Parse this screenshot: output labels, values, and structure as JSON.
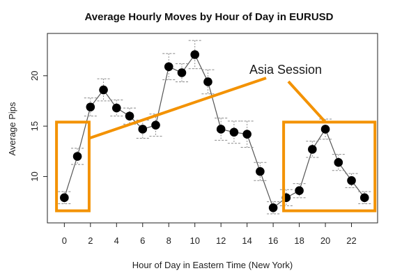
{
  "chart_data": {
    "type": "scatter",
    "title": "Average Hourly Moves by Hour of Day in EURUSD",
    "xlabel": "Hour of Day in Eastern Time (New York)",
    "ylabel": "Average Pips",
    "xlim": [
      -1.3,
      24.0
    ],
    "ylim": [
      5.4,
      24.2
    ],
    "x_ticks": [
      0,
      2,
      4,
      6,
      8,
      10,
      12,
      14,
      16,
      18,
      20,
      22
    ],
    "y_ticks": [
      10,
      15,
      20
    ],
    "grid": false,
    "series": [
      {
        "x": [
          0,
          1,
          2,
          3,
          4,
          5,
          6,
          7,
          8,
          9,
          10,
          11,
          12,
          13,
          14,
          15,
          16,
          17,
          18,
          19,
          20,
          21,
          22,
          23
        ],
        "y": [
          7.9,
          12.0,
          16.9,
          18.6,
          16.8,
          16.0,
          14.7,
          15.1,
          20.9,
          20.3,
          22.1,
          19.4,
          14.7,
          14.4,
          14.2,
          10.5,
          6.9,
          7.9,
          8.6,
          12.7,
          14.7,
          11.4,
          9.6,
          7.9
        ],
        "error": [
          0.6,
          0.8,
          0.9,
          1.1,
          0.8,
          0.8,
          0.9,
          1.1,
          1.3,
          0.9,
          1.4,
          1.2,
          1.1,
          1.1,
          1.3,
          0.9,
          0.6,
          0.8,
          0.7,
          0.8,
          1.0,
          0.8,
          0.7,
          0.6
        ]
      }
    ],
    "annotation": {
      "text": "Asia Session",
      "color": "#f39200",
      "boxes": [
        {
          "x": [
            -0.6,
            1.9
          ],
          "y": [
            6.6,
            15.4
          ]
        },
        {
          "x": [
            16.8,
            23.8
          ],
          "y": [
            6.6,
            15.4
          ]
        }
      ]
    },
    "colors": {
      "points": "#000000",
      "line": "#555555",
      "error_bars": "#888888",
      "highlight": "#f39200"
    }
  }
}
